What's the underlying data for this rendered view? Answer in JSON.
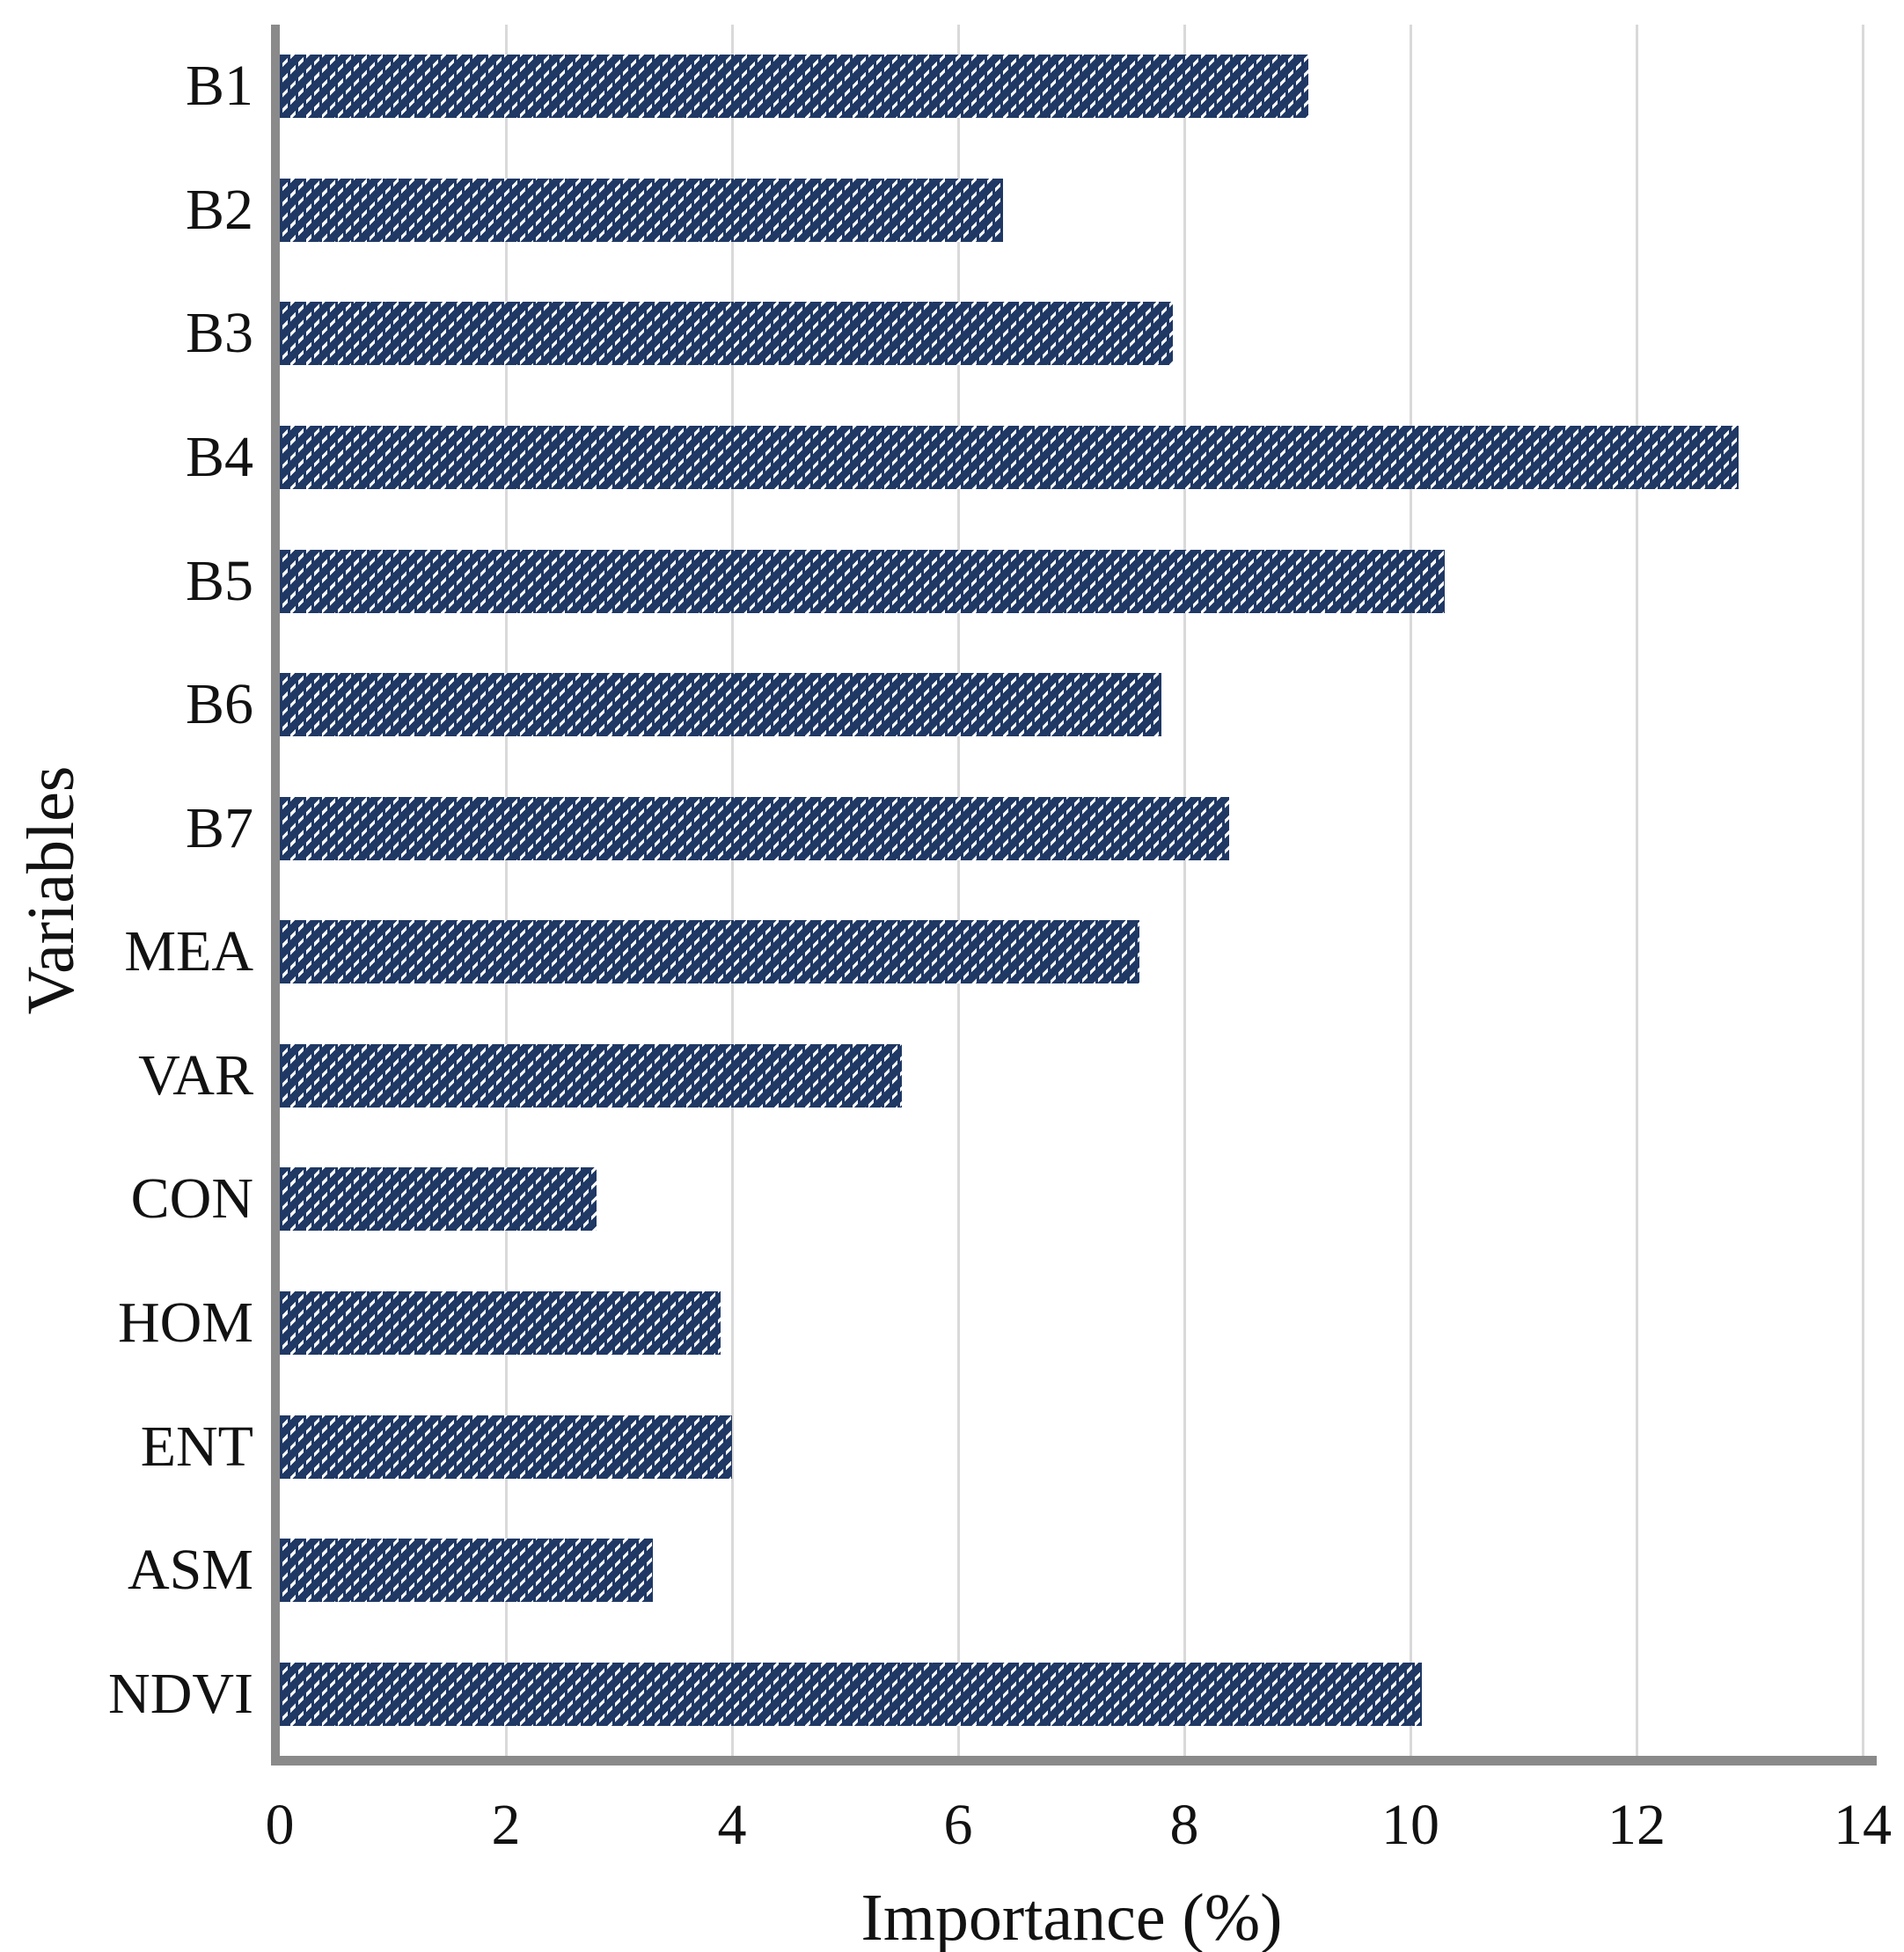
{
  "chart_data": {
    "type": "bar",
    "orientation": "horizontal",
    "title": "",
    "categories": [
      "B1",
      "B2",
      "B3",
      "B4",
      "B5",
      "B6",
      "B7",
      "MEA",
      "VAR",
      "CON",
      "HOM",
      "ENT",
      "ASM",
      "NDVI"
    ],
    "values": [
      9.1,
      6.4,
      7.9,
      12.9,
      10.3,
      7.8,
      8.4,
      7.6,
      5.5,
      2.8,
      3.9,
      4.0,
      3.3,
      10.1
    ],
    "xlabel": "Importance (%)",
    "ylabel": "Variables",
    "xlim": [
      0,
      14
    ],
    "xticks": [
      0,
      2,
      4,
      6,
      8,
      10,
      12,
      14
    ],
    "grid": "vertical-only",
    "legend": "none",
    "bar_color": "#1F3864",
    "bar_pattern": "white-dashed-diagonal-hatch",
    "hatch_color": "#FFFFFF",
    "gridline_color": "#D9D9D9",
    "axis_color": "#8A8A8A",
    "text_color": "#121212",
    "background_color": "#FFFFFF"
  }
}
